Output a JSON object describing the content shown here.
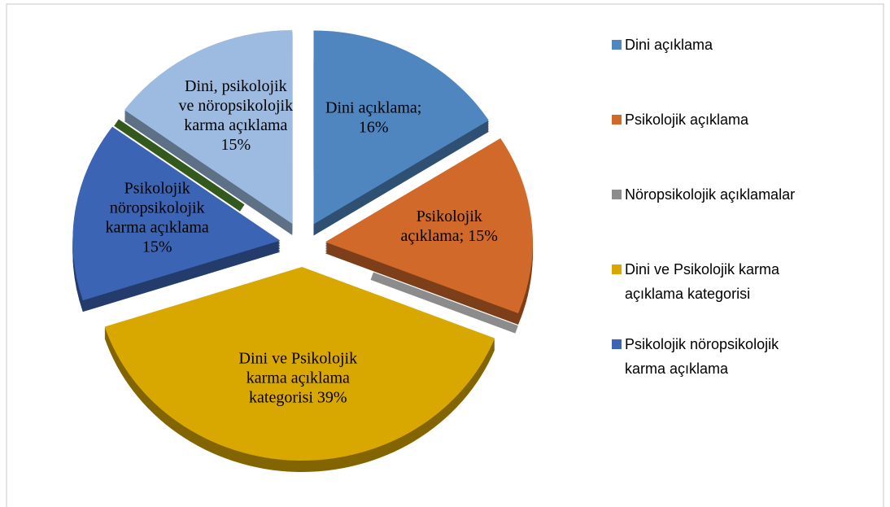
{
  "chart_data": {
    "type": "pie3d",
    "categories": [
      "Dini açıklama",
      "Psikolojik açıklama",
      "Nöropsikolojik açıklamalar",
      "Dini ve Psikolojik karma açıklama kategorisi",
      "Psikolojik nöropsikolojik karma açıklama",
      null,
      "Dini, psikolojik ve nöropsikolojik karma açıklama"
    ],
    "values": [
      16,
      15,
      0,
      39,
      15,
      0,
      15
    ],
    "value_labels": [
      "Dini açıklama; 16%",
      "Psikolojik açıklama; 15%",
      null,
      "Dini ve Psikolojik karma açıklama kategorisi 39%",
      "Psikolojik nöropsikolojik karma açıklama 15%",
      null,
      "Dini, psikolojik ve nöropsikolojik karma açıklama 15%"
    ],
    "colors": [
      "#4f86c0",
      "#d0692a",
      "#8c8c8c",
      "#d9a800",
      "#3c64b4",
      "#335a1c",
      "#9dbbe0"
    ],
    "legend": [
      "Dini açıklama",
      "Psikolojik açıklama",
      "Nöropsikolojik açıklamalar",
      "Dini ve Psikolojik karma açıklama kategorisi",
      "Psikolojik nöropsikolojik karma açıklama"
    ]
  }
}
